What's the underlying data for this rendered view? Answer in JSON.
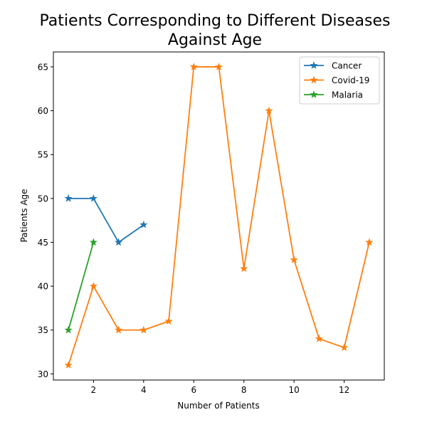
{
  "chart_data": {
    "type": "line",
    "title": "Patients Corresponding to Different Diseases\nAgainst Age",
    "title_lines": [
      "Patients Corresponding to Different Diseases",
      "Against Age"
    ],
    "xlabel": "Number of Patients",
    "ylabel": "Patients Age",
    "xlim": [
      0.4,
      13.6
    ],
    "ylim": [
      29.3,
      66.7
    ],
    "xticks": [
      2,
      4,
      6,
      8,
      10,
      12
    ],
    "yticks": [
      30,
      35,
      40,
      45,
      50,
      55,
      60,
      65
    ],
    "grid": false,
    "legend": {
      "placement": "top-right"
    },
    "marker": "star",
    "series": [
      {
        "name": "Cancer",
        "color": "#1f77b4",
        "x": [
          1,
          2,
          3,
          4
        ],
        "y": [
          50,
          50,
          45,
          47
        ]
      },
      {
        "name": "Covid-19",
        "color": "#ff7f0e",
        "x": [
          1,
          2,
          3,
          4,
          5,
          6,
          7,
          8,
          9,
          10,
          11,
          12,
          13
        ],
        "y": [
          31,
          40,
          35,
          35,
          36,
          65,
          65,
          42,
          60,
          43,
          34,
          33,
          45
        ]
      },
      {
        "name": "Malaria",
        "color": "#2ca02c",
        "x": [
          1,
          2
        ],
        "y": [
          35,
          45
        ]
      }
    ]
  }
}
